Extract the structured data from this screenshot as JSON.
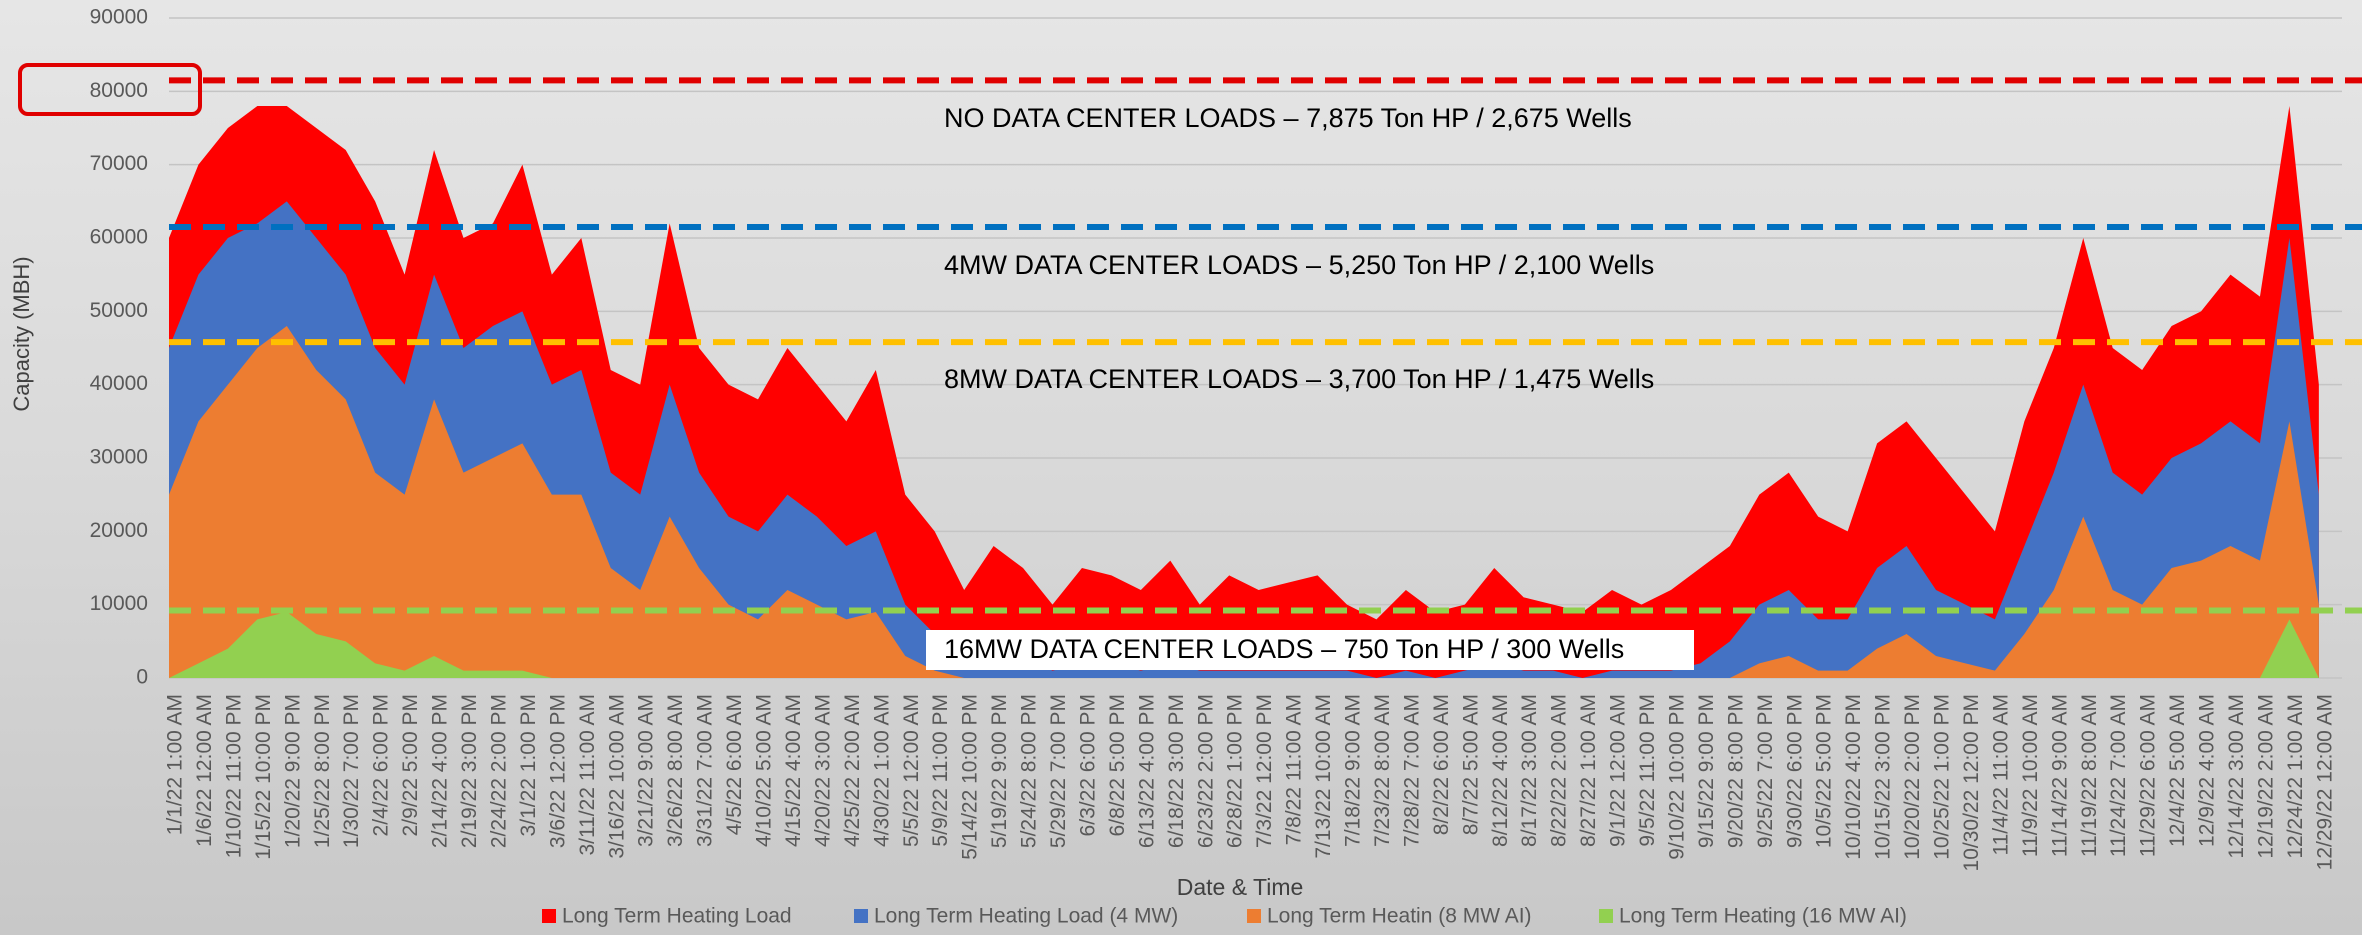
{
  "chart_data": {
    "type": "area",
    "x_label": "Date & Time",
    "y_label": "Capacity (MBH)",
    "x": [
      "1/1/22 1:00 AM",
      "1/6/22 12:00 AM",
      "1/10/22 11:00 PM",
      "1/15/22 10:00 PM",
      "1/20/22 9:00 PM",
      "1/25/22 8:00 PM",
      "1/30/22 7:00 PM",
      "2/4/22 6:00 PM",
      "2/9/22 5:00 PM",
      "2/14/22 4:00 PM",
      "2/19/22 3:00 PM",
      "2/24/22 2:00 PM",
      "3/1/22 1:00 PM",
      "3/6/22 12:00 PM",
      "3/11/22 11:00 AM",
      "3/16/22 10:00 AM",
      "3/21/22 9:00 AM",
      "3/26/22 8:00 AM",
      "3/31/22 7:00 AM",
      "4/5/22 6:00 AM",
      "4/10/22 5:00 AM",
      "4/15/22 4:00 AM",
      "4/20/22 3:00 AM",
      "4/25/22 2:00 AM",
      "4/30/22 1:00 AM",
      "5/5/22 12:00 AM",
      "5/9/22 11:00 PM",
      "5/14/22 10:00 PM",
      "5/19/22 9:00 PM",
      "5/24/22 8:00 PM",
      "5/29/22 7:00 PM",
      "6/3/22 6:00 PM",
      "6/8/22 5:00 PM",
      "6/13/22 4:00 PM",
      "6/18/22 3:00 PM",
      "6/23/22 2:00 PM",
      "6/28/22 1:00 PM",
      "7/3/22 12:00 PM",
      "7/8/22 11:00 AM",
      "7/13/22 10:00 AM",
      "7/18/22 9:00 AM",
      "7/23/22 8:00 AM",
      "7/28/22 7:00 AM",
      "8/2/22 6:00 AM",
      "8/7/22 5:00 AM",
      "8/12/22 4:00 AM",
      "8/17/22 3:00 AM",
      "8/22/22 2:00 AM",
      "8/27/22 1:00 AM",
      "9/1/22 12:00 AM",
      "9/5/22 11:00 PM",
      "9/10/22 10:00 PM",
      "9/15/22 9:00 PM",
      "9/20/22 8:00 PM",
      "9/25/22 7:00 PM",
      "9/30/22 6:00 PM",
      "10/5/22 5:00 PM",
      "10/10/22 4:00 PM",
      "10/15/22 3:00 PM",
      "10/20/22 2:00 PM",
      "10/25/22 1:00 PM",
      "10/30/22 12:00 PM",
      "11/4/22 11:00 AM",
      "11/9/22 10:00 AM",
      "11/14/22 9:00 AM",
      "11/19/22 8:00 AM",
      "11/24/22 7:00 AM",
      "11/29/22 6:00 AM",
      "12/4/22 5:00 AM",
      "12/9/22 4:00 AM",
      "12/14/22 3:00 AM",
      "12/19/22 2:00 AM",
      "12/24/22 1:00 AM",
      "12/29/22 12:00 AM"
    ],
    "series": [
      {
        "name": "Long Term Heating Load",
        "color": "#ff0000",
        "values": [
          60000,
          70000,
          75000,
          78000,
          78000,
          75000,
          72000,
          65000,
          55000,
          72000,
          60000,
          62000,
          70000,
          55000,
          60000,
          42000,
          40000,
          62000,
          45000,
          40000,
          38000,
          45000,
          40000,
          35000,
          42000,
          25000,
          20000,
          12000,
          18000,
          15000,
          10000,
          15000,
          14000,
          12000,
          16000,
          10000,
          14000,
          12000,
          13000,
          14000,
          10000,
          8000,
          12000,
          9000,
          10000,
          15000,
          11000,
          10000,
          9000,
          12000,
          10000,
          12000,
          15000,
          18000,
          25000,
          28000,
          22000,
          20000,
          32000,
          35000,
          30000,
          25000,
          20000,
          35000,
          45000,
          60000,
          45000,
          42000,
          48000,
          50000,
          55000,
          52000,
          78000,
          40000
        ]
      },
      {
        "name": "Long Term Heating Load (4 MW)",
        "color": "#4472c4",
        "values": [
          45000,
          55000,
          60000,
          62000,
          65000,
          60000,
          55000,
          45000,
          40000,
          55000,
          45000,
          48000,
          50000,
          40000,
          42000,
          28000,
          25000,
          40000,
          28000,
          22000,
          20000,
          25000,
          22000,
          18000,
          20000,
          10000,
          6000,
          2000,
          4000,
          3000,
          1000,
          2000,
          2000,
          1000,
          2000,
          1000,
          1000,
          1000,
          1000,
          1000,
          1000,
          0,
          1000,
          0,
          1000,
          2000,
          1000,
          1000,
          0,
          1000,
          1000,
          1000,
          2000,
          5000,
          10000,
          12000,
          8000,
          8000,
          15000,
          18000,
          12000,
          10000,
          8000,
          18000,
          28000,
          40000,
          28000,
          25000,
          30000,
          32000,
          35000,
          32000,
          60000,
          25000
        ]
      },
      {
        "name": "Long Term Heatin (8 MW AI)",
        "color": "#ed7d31",
        "values": [
          25000,
          35000,
          40000,
          45000,
          48000,
          42000,
          38000,
          28000,
          25000,
          38000,
          28000,
          30000,
          32000,
          25000,
          25000,
          15000,
          12000,
          22000,
          15000,
          10000,
          8000,
          12000,
          10000,
          8000,
          9000,
          3000,
          1000,
          0,
          0,
          0,
          0,
          0,
          0,
          0,
          0,
          0,
          0,
          0,
          0,
          0,
          0,
          0,
          0,
          0,
          0,
          0,
          0,
          0,
          0,
          0,
          0,
          0,
          0,
          0,
          2000,
          3000,
          1000,
          1000,
          4000,
          6000,
          3000,
          2000,
          1000,
          6000,
          12000,
          22000,
          12000,
          10000,
          15000,
          16000,
          18000,
          16000,
          35000,
          10000
        ]
      },
      {
        "name": "Long Term Heating (16 MW AI)",
        "color": "#92d050",
        "values": [
          0,
          2000,
          4000,
          8000,
          9000,
          6000,
          5000,
          2000,
          1000,
          3000,
          1000,
          1000,
          1000,
          0,
          0,
          0,
          0,
          0,
          0,
          0,
          0,
          0,
          0,
          0,
          0,
          0,
          0,
          0,
          0,
          0,
          0,
          0,
          0,
          0,
          0,
          0,
          0,
          0,
          0,
          0,
          0,
          0,
          0,
          0,
          0,
          0,
          0,
          0,
          0,
          0,
          0,
          0,
          0,
          0,
          0,
          0,
          0,
          0,
          0,
          0,
          0,
          0,
          0,
          0,
          0,
          0,
          0,
          0,
          0,
          0,
          0,
          0,
          8000,
          0
        ]
      }
    ],
    "reference_lines": [
      {
        "value": 81500,
        "color": "#e00000",
        "label": "NO DATA CENTER LOADS – 7,875 Ton HP / 2,675 Wells"
      },
      {
        "value": 61500,
        "color": "#0070c0",
        "label": "4MW DATA CENTER LOADS – 5,250 Ton HP / 2,100 Wells"
      },
      {
        "value": 45800,
        "color": "#ffc000",
        "label": "8MW DATA CENTER LOADS – 3,700 Ton HP / 1,475 Wells"
      },
      {
        "value": 9200,
        "color": "#92d050",
        "label": "16MW DATA CENTER LOADS – 750 Ton HP / 300 Wells"
      }
    ],
    "ylim": [
      0,
      90000
    ],
    "yticks": [
      0,
      10000,
      20000,
      30000,
      40000,
      50000,
      60000,
      70000,
      80000,
      90000
    ],
    "grid": true,
    "legend": "bottom"
  }
}
